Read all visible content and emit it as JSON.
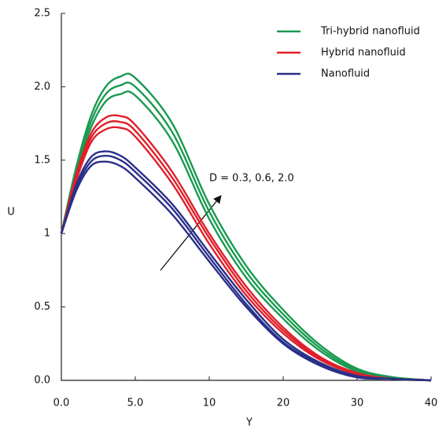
{
  "chart_data": {
    "type": "line",
    "xlabel": "Y",
    "ylabel": "U",
    "annotation": "D = 0.3, 0.6, 2.0",
    "x": [
      0,
      1,
      2,
      3,
      4,
      5,
      7.5,
      10,
      15,
      20,
      25,
      30,
      35,
      40
    ],
    "xlim": [
      0,
      40
    ],
    "xticks": [
      {
        "value": 0,
        "label": "0.0"
      },
      {
        "value": 5,
        "label": "5.0"
      },
      10,
      20,
      30,
      40
    ],
    "ylim": [
      0,
      2.5
    ],
    "yticks": [
      {
        "value": 0,
        "label": "0.0"
      },
      0.5,
      1,
      1.5,
      {
        "value": 2,
        "label": "2.0"
      },
      2.5
    ],
    "legend": "upper right",
    "series": [
      {
        "name": "Tri-hybrid nanofluid",
        "color": "#1a9a50",
        "values": [
          1,
          1.45,
          1.8,
          2.0,
          2.07,
          2.06,
          1.75,
          1.2,
          0.78,
          0.48,
          0.24,
          0.08,
          0.02,
          0
        ]
      },
      {
        "color": "#1a9a50",
        "values": [
          1,
          1.43,
          1.76,
          1.95,
          2.01,
          2.0,
          1.69,
          1.15,
          0.74,
          0.45,
          0.22,
          0.07,
          0.02,
          0
        ]
      },
      {
        "color": "#1a9a50",
        "values": [
          1,
          1.41,
          1.72,
          1.9,
          1.95,
          1.94,
          1.63,
          1.1,
          0.7,
          0.42,
          0.2,
          0.06,
          0.01,
          0
        ]
      },
      {
        "name": "Hybrid nanofluid",
        "color": "#e0202a",
        "values": [
          1,
          1.4,
          1.68,
          1.79,
          1.8,
          1.74,
          1.42,
          1.0,
          0.64,
          0.36,
          0.16,
          0.05,
          0.01,
          0
        ]
      },
      {
        "color": "#e0202a",
        "values": [
          1,
          1.38,
          1.65,
          1.75,
          1.76,
          1.7,
          1.38,
          0.97,
          0.61,
          0.34,
          0.15,
          0.04,
          0.01,
          0
        ]
      },
      {
        "color": "#e0202a",
        "values": [
          1,
          1.36,
          1.62,
          1.71,
          1.72,
          1.66,
          1.34,
          0.93,
          0.58,
          0.32,
          0.14,
          0.04,
          0.01,
          0
        ]
      },
      {
        "name": "Nanofluid",
        "color": "#2a3088",
        "values": [
          1,
          1.33,
          1.52,
          1.56,
          1.53,
          1.45,
          1.2,
          0.87,
          0.55,
          0.28,
          0.12,
          0.03,
          0.01,
          0
        ]
      },
      {
        "color": "#2a3088",
        "values": [
          1,
          1.31,
          1.49,
          1.53,
          1.5,
          1.42,
          1.17,
          0.84,
          0.52,
          0.26,
          0.11,
          0.03,
          0.01,
          0
        ]
      },
      {
        "color": "#2a3088",
        "values": [
          1,
          1.29,
          1.46,
          1.49,
          1.46,
          1.38,
          1.13,
          0.81,
          0.5,
          0.25,
          0.1,
          0.02,
          0.01,
          0
        ]
      }
    ]
  }
}
